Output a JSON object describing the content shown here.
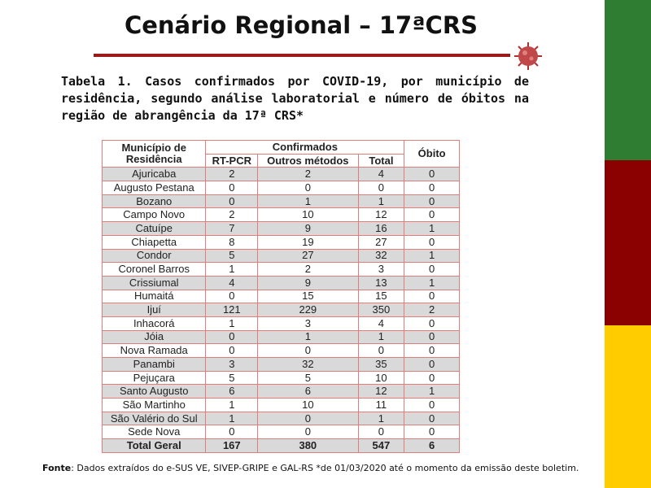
{
  "title": "Cenário Regional – 17ªCRS",
  "caption": "Tabela 1. Casos confirmados por COVID-19, por município de residência, segundo análise laboratorial e número de óbitos na região de abrangência da 17ª CRS*",
  "table": {
    "headers": {
      "municipality": "Município de Residência",
      "confirmed": "Confirmados",
      "deaths": "Óbito",
      "sub": [
        "RT-PCR",
        "Outros métodos",
        "Total"
      ]
    },
    "rows": [
      [
        "Ajuricaba",
        2,
        2,
        4,
        0
      ],
      [
        "Augusto Pestana",
        0,
        0,
        0,
        0
      ],
      [
        "Bozano",
        0,
        1,
        1,
        0
      ],
      [
        "Campo Novo",
        2,
        10,
        12,
        0
      ],
      [
        "Catuípe",
        7,
        9,
        16,
        1
      ],
      [
        "Chiapetta",
        8,
        19,
        27,
        0
      ],
      [
        "Condor",
        5,
        27,
        32,
        1
      ],
      [
        "Coronel Barros",
        1,
        2,
        3,
        0
      ],
      [
        "Crissiumal",
        4,
        9,
        13,
        1
      ],
      [
        "Humaitá",
        0,
        15,
        15,
        0
      ],
      [
        "Ijuí",
        121,
        229,
        350,
        2
      ],
      [
        "Inhacorá",
        1,
        3,
        4,
        0
      ],
      [
        "Jóia",
        0,
        1,
        1,
        0
      ],
      [
        "Nova Ramada",
        0,
        0,
        0,
        0
      ],
      [
        "Panambi",
        3,
        32,
        35,
        0
      ],
      [
        "Pejuçara",
        5,
        5,
        10,
        0
      ],
      [
        "Santo Augusto",
        6,
        6,
        12,
        1
      ],
      [
        "São Martinho",
        1,
        10,
        11,
        0
      ],
      [
        "São Valério do Sul",
        1,
        0,
        1,
        0
      ],
      [
        "Sede Nova",
        0,
        0,
        0,
        0
      ]
    ],
    "total": [
      "Total Geral",
      167,
      380,
      547,
      6
    ]
  },
  "source": {
    "label": "Fonte",
    "text": ": Dados extraídos do e-SUS VE, SIVEP-GRIPE e GAL-RS *de 01/03/2020 até o momento da emissão deste boletim."
  }
}
